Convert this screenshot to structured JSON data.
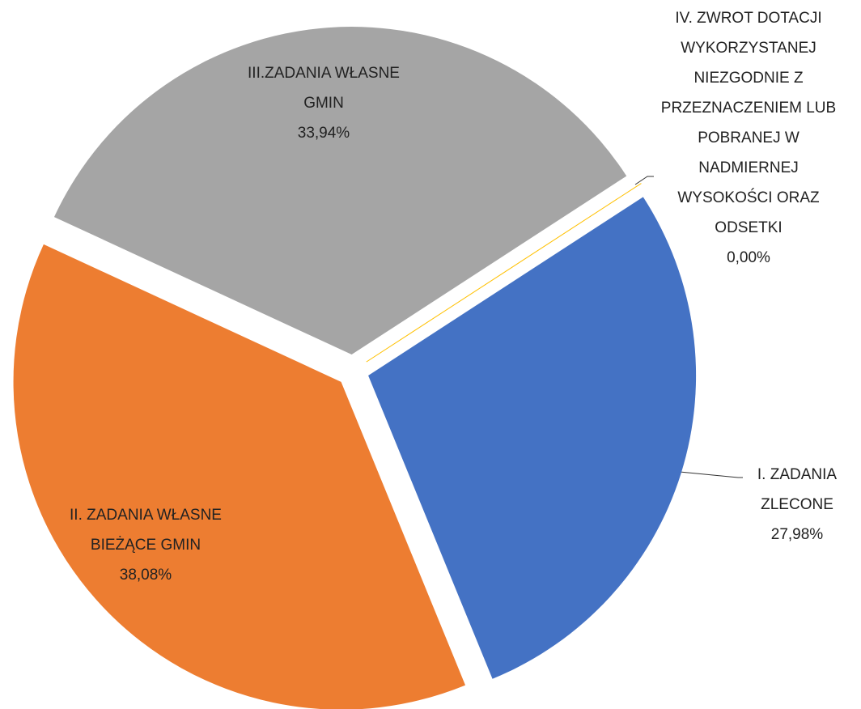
{
  "chart_data": {
    "type": "pie",
    "categories": [
      "I. ZADANIA ZLECONE",
      "II. ZADANIA WŁASNE BIEŻĄCE GMIN",
      "III.ZADANIA WŁASNE GMIN",
      "IV. ZWROT DOTACJI WYKORZYSTANEJ NIEZGODNIE Z PRZEZNACZENIEM LUB POBRANEJ W NADMIERNEJ WYSOKOŚCI ORAZ ODSETKI"
    ],
    "values": [
      27.98,
      38.08,
      33.94,
      0.0
    ],
    "value_labels": [
      "27,98%",
      "38,08%",
      "33,94%",
      "0,00%"
    ],
    "colors": [
      "#4472c4",
      "#ed7d31",
      "#a5a5a5",
      "#ffc000"
    ]
  }
}
